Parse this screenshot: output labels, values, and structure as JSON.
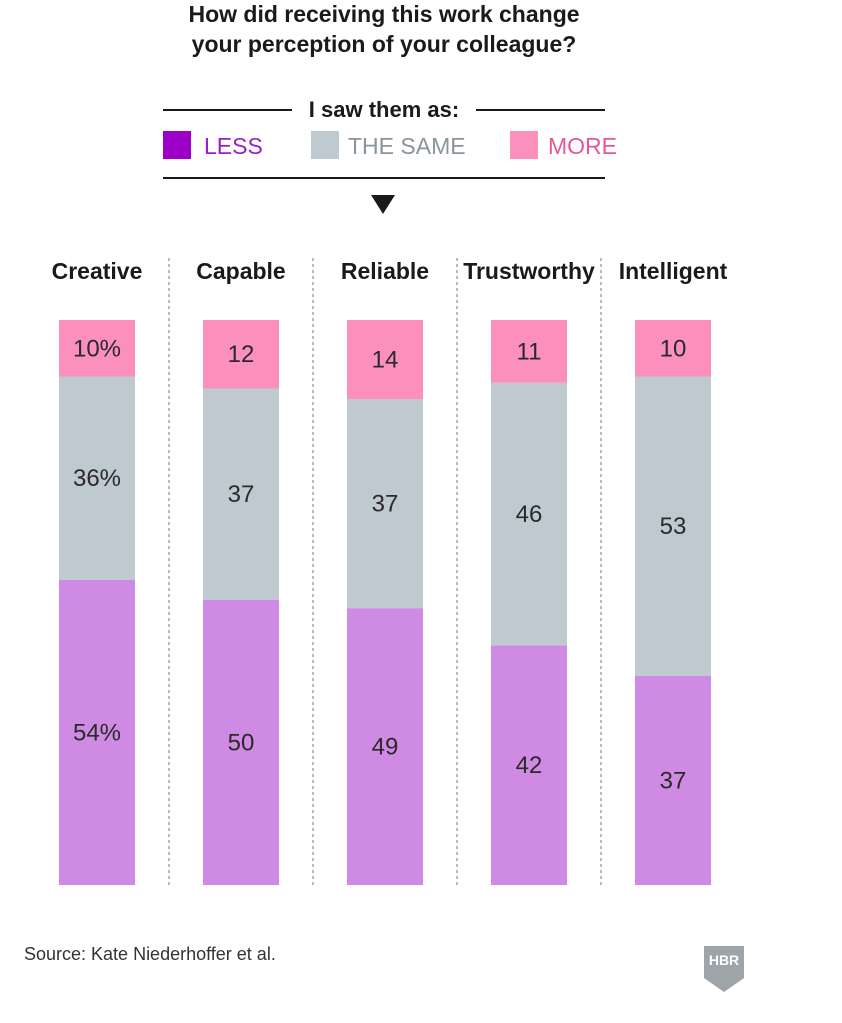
{
  "chart_data": {
    "type": "bar",
    "stacked": true,
    "title": "How did receiving this work change your perception of your colleague?",
    "title_lines": [
      "How did receiving this work change",
      "your perception of your colleague?"
    ],
    "legend_title": "I saw them as:",
    "categories": [
      "Creative",
      "Capable",
      "Reliable",
      "Trustworthy",
      "Intelligent"
    ],
    "series": [
      {
        "name": "LESS",
        "color": "#cf8ae3",
        "swatch": "#9b00c7",
        "text_color": "#9b1fc7",
        "values": [
          54,
          50,
          49,
          42,
          37
        ]
      },
      {
        "name": "THE SAME",
        "color": "#bfc9d0",
        "swatch": "#bfc9d0",
        "text_color": "#8a949a",
        "values": [
          36,
          37,
          37,
          46,
          53
        ]
      },
      {
        "name": "MORE",
        "color": "#fb90bd",
        "swatch": "#fb90bd",
        "text_color": "#e8569a",
        "values": [
          10,
          12,
          14,
          11,
          10
        ]
      }
    ],
    "value_labels": [
      [
        "54%",
        "36%",
        "10%"
      ],
      [
        "50",
        "37",
        "12"
      ],
      [
        "49",
        "37",
        "14"
      ],
      [
        "42",
        "46",
        "11"
      ],
      [
        "37",
        "53",
        "10"
      ]
    ],
    "xlabel": "",
    "ylabel": "",
    "ylim": [
      0,
      100
    ],
    "grid": false
  },
  "source": "Source: Kate Niederhoffer et al.",
  "logo": {
    "text": "HBR",
    "color": "#9ea5a8"
  }
}
